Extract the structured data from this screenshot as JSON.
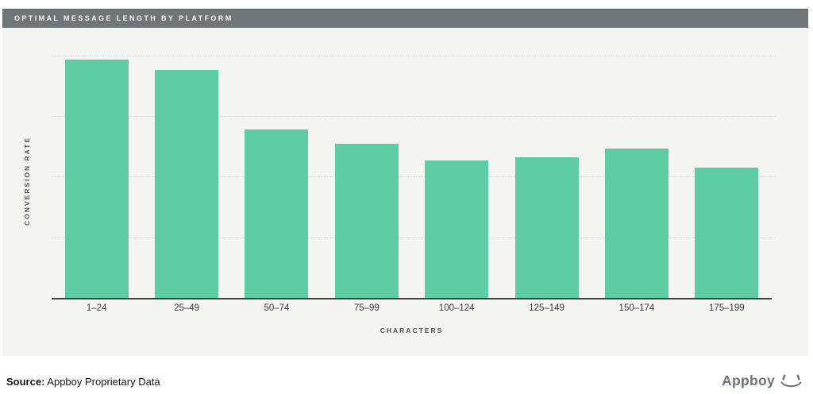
{
  "header": {
    "title": "OPTIMAL MESSAGE LENGTH BY PLATFORM"
  },
  "chart_data": {
    "type": "bar",
    "title": "OPTIMAL MESSAGE LENGTH BY PLATFORM",
    "categories": [
      "1–24",
      "25–49",
      "50–74",
      "75–99",
      "100–124",
      "125–149",
      "150–174",
      "175–199"
    ],
    "values": [
      98.4,
      94.0,
      69.6,
      63.7,
      56.7,
      58.0,
      61.7,
      53.7
    ],
    "values_note": "relative bar heights in % of plot height; y axis shows no numeric tick labels",
    "xlabel": "CHARACTERS",
    "ylabel": "CONVERSION RATE",
    "ylim": [
      0,
      100
    ],
    "y_tick_labels": [],
    "grid": "4 horizontal dotted gridlines at 25/50/75/100%",
    "legend": "none",
    "bar_color": "#5ecda3"
  },
  "footer": {
    "source_label": "Source:",
    "source_text": " Appboy Proprietary Data",
    "brand_name": "Appboy"
  },
  "colors": {
    "panel_bg": "#f4f4f3",
    "header_bg": "#6f7578",
    "header_text": "#f4f5f5",
    "bar_green": "#5ecda3",
    "gridline": "#d2d2d0",
    "axis_line": "#3d4144",
    "tick_text": "#37393b",
    "axis_title_text": "#4c5052",
    "brand_gray": "#6f7478"
  }
}
